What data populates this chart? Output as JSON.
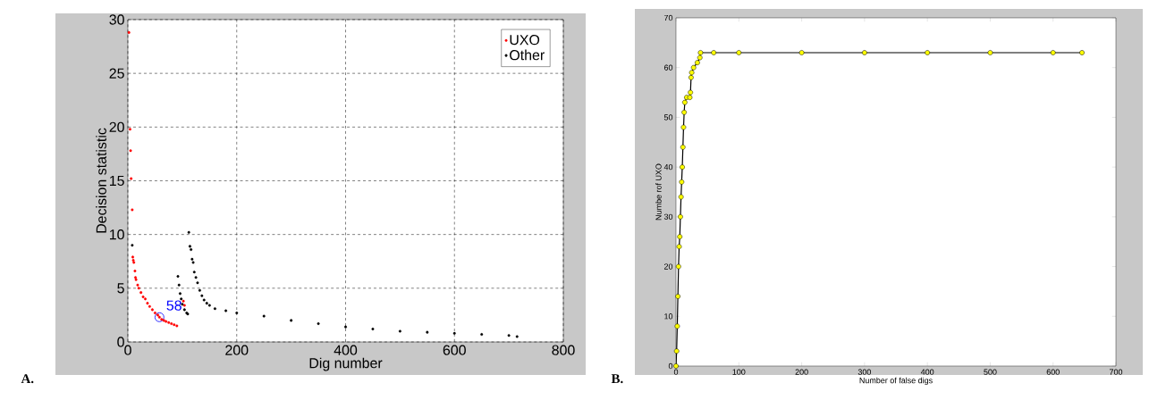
{
  "chart_data": [
    {
      "type": "scatter",
      "title": "A.",
      "xlabel": "Dig number",
      "ylabel": "Decision statistic",
      "xlim": [
        0,
        800
      ],
      "ylim": [
        0,
        30
      ],
      "xticks": [
        0,
        200,
        400,
        600,
        800
      ],
      "yticks": [
        0,
        5,
        10,
        15,
        20,
        25,
        30
      ],
      "grid": true,
      "legend": "top right",
      "marker": "circle",
      "annotations": [
        {
          "text": "58",
          "x": 58,
          "y": 2.3
        }
      ],
      "series": [
        {
          "name": "UXO",
          "color": "#ff0000",
          "x": [
            2,
            4,
            5,
            6,
            8,
            9,
            10,
            11,
            13,
            14,
            15,
            18,
            20,
            24,
            28,
            32,
            36,
            40,
            45,
            50,
            55,
            58,
            62,
            66,
            70,
            75,
            80,
            85,
            90,
            102,
            104
          ],
          "values": [
            28.8,
            19.8,
            17.8,
            15.2,
            12.3,
            7.9,
            7.6,
            7.4,
            6.6,
            6.0,
            5.8,
            5.3,
            5.0,
            4.6,
            4.2,
            4.0,
            3.6,
            3.3,
            3.0,
            2.7,
            2.5,
            2.3,
            2.1,
            2.0,
            1.9,
            1.8,
            1.7,
            1.6,
            1.5,
            3.8,
            3.4
          ]
        },
        {
          "name": "Other",
          "color": "#000000",
          "x": [
            8,
            92,
            94,
            96,
            98,
            100,
            104,
            108,
            110,
            112,
            114,
            116,
            118,
            120,
            122,
            125,
            128,
            132,
            136,
            140,
            145,
            150,
            160,
            180,
            200,
            250,
            300,
            350,
            400,
            450,
            500,
            550,
            600,
            650,
            700,
            715
          ],
          "values": [
            9.0,
            6.1,
            5.3,
            4.5,
            4.0,
            3.5,
            3.0,
            2.7,
            2.6,
            10.2,
            8.9,
            8.6,
            7.7,
            7.4,
            6.5,
            6.0,
            5.5,
            4.8,
            4.3,
            3.9,
            3.6,
            3.4,
            3.1,
            2.9,
            2.7,
            2.4,
            2.0,
            1.7,
            1.4,
            1.2,
            1.0,
            0.9,
            0.8,
            0.7,
            0.6,
            0.5
          ]
        }
      ]
    },
    {
      "type": "line",
      "title": "B.",
      "xlabel": "Number of false digs",
      "ylabel": "Numbe rof UXO",
      "xlim": [
        0,
        700
      ],
      "ylim": [
        0,
        70
      ],
      "xticks": [
        0,
        100,
        200,
        300,
        400,
        500,
        600,
        700
      ],
      "yticks": [
        0,
        10,
        20,
        30,
        40,
        50,
        60,
        70
      ],
      "marker": "circle",
      "series": [
        {
          "color": "#ffff00",
          "x": [
            0,
            1,
            2,
            3,
            4,
            5,
            6,
            7,
            8,
            9,
            10,
            11,
            12,
            13,
            14,
            17,
            22,
            23,
            24,
            25,
            28,
            34,
            38,
            39,
            60,
            100,
            200,
            300,
            400,
            500,
            600,
            646
          ],
          "values": [
            0,
            3,
            8,
            14,
            20,
            24,
            26,
            30,
            34,
            37,
            40,
            44,
            48,
            51,
            53,
            54,
            54,
            55,
            58,
            59,
            60,
            61,
            62,
            63,
            63,
            63,
            63,
            63,
            63,
            63,
            63,
            63
          ]
        }
      ]
    }
  ]
}
